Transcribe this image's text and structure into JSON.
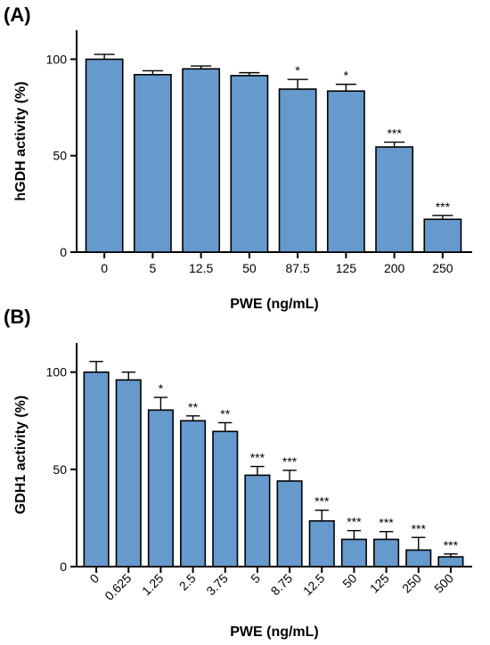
{
  "chart_data": [
    {
      "type": "bar",
      "panel_label": "(A)",
      "categories": [
        "0",
        "5",
        "12.5",
        "50",
        "87.5",
        "125",
        "200",
        "250"
      ],
      "values": [
        100,
        92,
        95,
        91.5,
        84.5,
        83.5,
        54.5,
        17
      ],
      "errors": [
        2.5,
        2,
        1.5,
        1.5,
        5,
        3.5,
        2.5,
        2
      ],
      "significance": [
        "",
        "",
        "",
        "",
        "*",
        "*",
        "***",
        "***"
      ],
      "xlabel": "PWE (ng/mL)",
      "ylabel": "hGDH activity (%)",
      "ylim": [
        0,
        115
      ],
      "yticks": [
        0,
        50,
        100
      ],
      "bar_color": "#6699cc",
      "x_ticks_rotated": false
    },
    {
      "type": "bar",
      "panel_label": "(B)",
      "categories": [
        "0",
        "0.625",
        "1.25",
        "2.5",
        "3.75",
        "5",
        "8.75",
        "12.5",
        "50",
        "125",
        "250",
        "500"
      ],
      "values": [
        100,
        96,
        80.5,
        75,
        69.5,
        47,
        44,
        23.5,
        14,
        14,
        8.5,
        5
      ],
      "errors": [
        5.5,
        4,
        6.5,
        2.5,
        4.5,
        4.5,
        5.5,
        5.5,
        4.5,
        4,
        6.5,
        1.5
      ],
      "significance": [
        "",
        "",
        "*",
        "**",
        "**",
        "***",
        "***",
        "***",
        "***",
        "***",
        "***",
        "***"
      ],
      "xlabel": "PWE (ng/mL)",
      "ylabel": "GDH1 activity (%)",
      "ylim": [
        0,
        115
      ],
      "yticks": [
        0,
        50,
        100
      ],
      "bar_color": "#6699cc",
      "x_ticks_rotated": true
    }
  ]
}
